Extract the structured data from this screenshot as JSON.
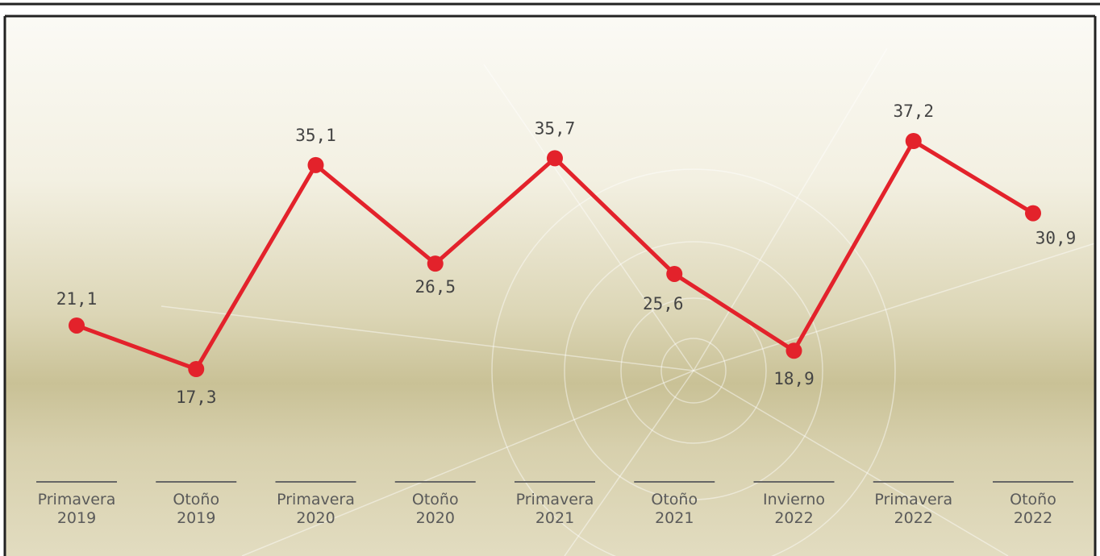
{
  "chart_data": {
    "type": "line",
    "categories": [
      "Primavera 2019",
      "Otoño 2019",
      "Primavera 2020",
      "Otoño 2020",
      "Primavera 2021",
      "Otoño 2021",
      "Invierno 2022",
      "Primavera 2022",
      "Otoño 2022"
    ],
    "series": [
      {
        "color": "#e3222b",
        "values": [
          21.1,
          17.3,
          35.1,
          26.5,
          35.7,
          25.6,
          18.9,
          37.2,
          30.9
        ],
        "value_labels": [
          "21,1",
          "17,3",
          "35,1",
          "26,5",
          "35,7",
          "25,6",
          "18,9",
          "37,2",
          "30,9"
        ]
      }
    ]
  }
}
